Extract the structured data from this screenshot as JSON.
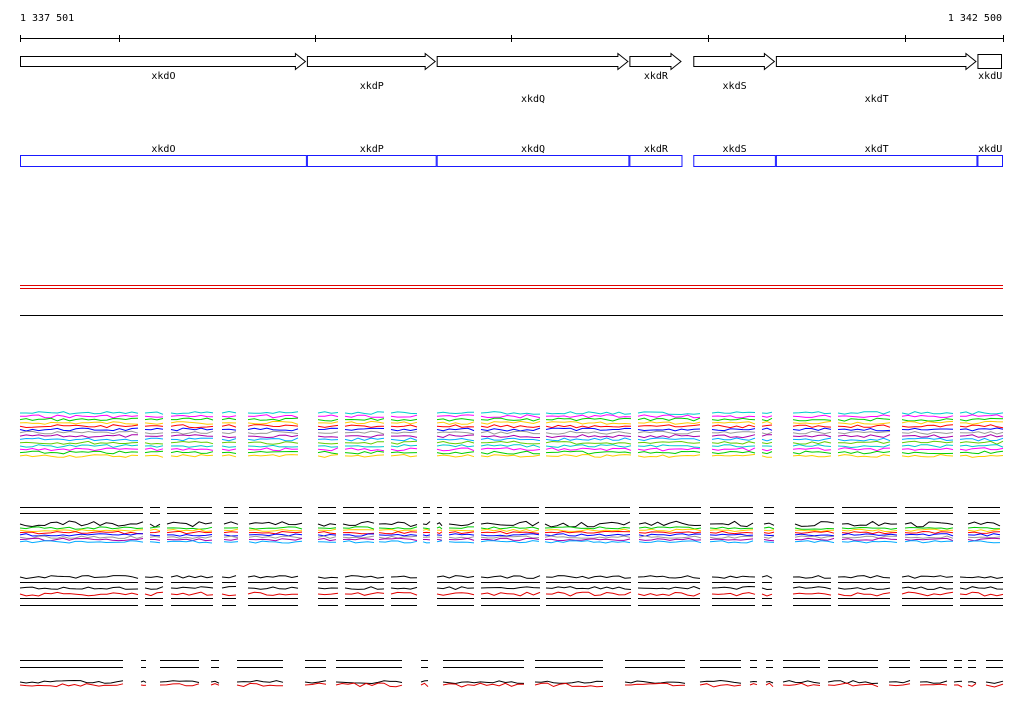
{
  "region": {
    "start_label": "1 337 501",
    "end_label": "1 342 500",
    "start": 1337501,
    "end": 1342500
  },
  "colors": {
    "axis": "#000000",
    "gene_fill": "#ffffff",
    "gene_stroke": "#000000",
    "cds_stroke": "#1a1aff",
    "track_red": "#e00000",
    "track_black": "#000000",
    "profile_palette": [
      "#00cccc",
      "#ff00ff",
      "#00cc00",
      "#ffcc00",
      "#ff0000",
      "#0000ff",
      "#999999",
      "#aa00aa",
      "#00aaff",
      "#66cc00"
    ]
  },
  "genes": [
    {
      "name": "xkdO",
      "start": 1337501,
      "end": 1338960,
      "strand": "+"
    },
    {
      "name": "xkdP",
      "start": 1338960,
      "end": 1339620,
      "strand": "+"
    },
    {
      "name": "xkdQ",
      "start": 1339620,
      "end": 1340600,
      "strand": "+"
    },
    {
      "name": "xkdR",
      "start": 1340600,
      "end": 1340870,
      "strand": "+"
    },
    {
      "name": "xkdS",
      "start": 1340925,
      "end": 1341345,
      "strand": "+"
    },
    {
      "name": "xkdT",
      "start": 1341345,
      "end": 1342370,
      "strand": "+"
    },
    {
      "name": "xkdU",
      "start": 1342370,
      "end": 1342500,
      "strand": "+"
    }
  ]
}
